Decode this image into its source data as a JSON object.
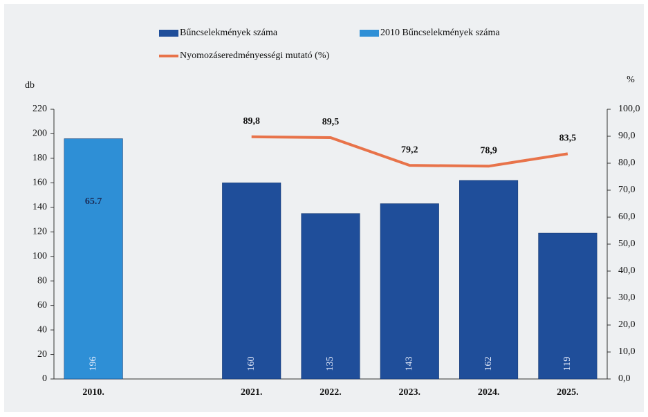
{
  "chart_data": {
    "type": "bar",
    "categories": [
      "2010.",
      null,
      "2021.",
      "2022.",
      "2023.",
      "2024.",
      "2025."
    ],
    "series": [
      {
        "name": "Bűncselekmények száma",
        "color": "#1f4e9a",
        "type": "bar",
        "values": [
          null,
          null,
          160,
          135,
          143,
          162,
          119
        ]
      },
      {
        "name": "2010  Bűncselekmények száma",
        "color": "#2e8fd6",
        "type": "bar",
        "values": [
          196,
          null,
          null,
          null,
          null,
          null,
          null
        ]
      },
      {
        "name": "Nyomozáseredményességi mutató (%)",
        "color": "#e8734a",
        "type": "line",
        "axis": "y2",
        "values": [
          65.7,
          null,
          89.8,
          89.5,
          79.2,
          78.9,
          83.5
        ],
        "value_labels": [
          "65.7",
          null,
          "89,8",
          "89,5",
          "79,2",
          "78,9",
          "83,5"
        ]
      }
    ],
    "ylabel": "db",
    "y2label": "%",
    "ylim": [
      0,
      220
    ],
    "yticks": [
      0,
      20,
      40,
      60,
      80,
      100,
      120,
      140,
      160,
      180,
      200,
      220
    ],
    "y2lim": [
      0,
      100
    ],
    "y2ticks": [
      {
        "value": 0,
        "label": "0,0"
      },
      {
        "value": 10,
        "label": "10,0"
      },
      {
        "value": 20,
        "label": "20,0"
      },
      {
        "value": 30,
        "label": "30,0"
      },
      {
        "value": 40,
        "label": "40,0"
      },
      {
        "value": 50,
        "label": "50,0"
      },
      {
        "value": 60,
        "label": "60,0"
      },
      {
        "value": 70,
        "label": "70,0"
      },
      {
        "value": 80,
        "label": "80,0"
      },
      {
        "value": 90,
        "label": "90,0"
      },
      {
        "value": 100,
        "label": "100,0"
      }
    ],
    "grid": false
  }
}
